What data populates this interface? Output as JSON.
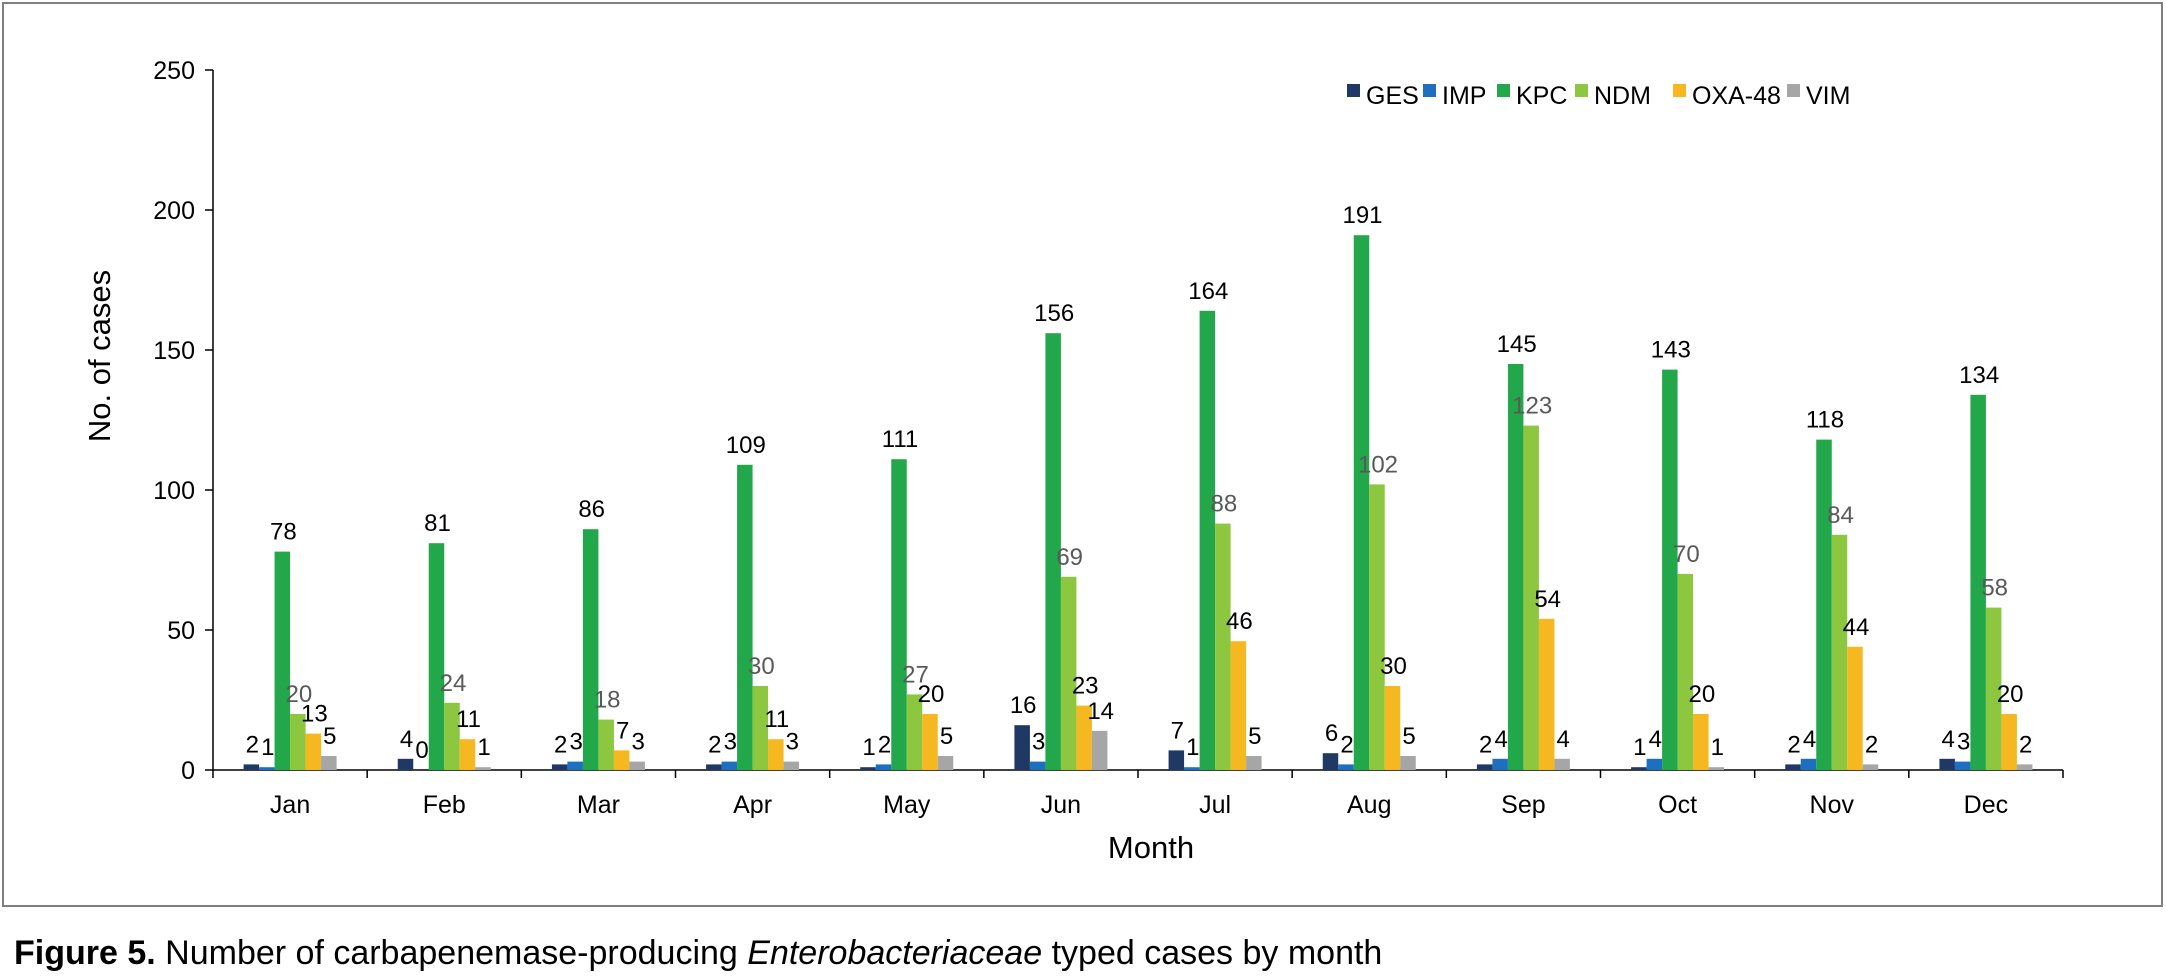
{
  "chart_data": {
    "type": "bar",
    "title": "",
    "xlabel": "Month",
    "ylabel": "No. of cases",
    "ylim": [
      0,
      250
    ],
    "yticks": [
      "0",
      "50",
      "100",
      "150",
      "200",
      "250"
    ],
    "categories": [
      "Jan",
      "Feb",
      "Mar",
      "Apr",
      "May",
      "Jun",
      "Jul",
      "Aug",
      "Sep",
      "Oct",
      "Nov",
      "Dec"
    ],
    "legend_position": "top-right",
    "grid": false,
    "series": [
      {
        "name": "GES",
        "color": "#1f3864",
        "label_color": "#000000",
        "values": [
          2,
          4,
          2,
          2,
          1,
          16,
          7,
          6,
          2,
          1,
          2,
          4
        ]
      },
      {
        "name": "IMP",
        "color": "#1f6fc0",
        "label_color": "#000000",
        "values": [
          1,
          0,
          3,
          3,
          2,
          3,
          1,
          2,
          4,
          4,
          4,
          3
        ]
      },
      {
        "name": "KPC",
        "color": "#22a84a",
        "label_color": "#000000",
        "values": [
          78,
          81,
          86,
          109,
          111,
          156,
          164,
          191,
          145,
          143,
          118,
          134
        ]
      },
      {
        "name": "NDM",
        "color": "#8dc63f",
        "label_color": "#595959",
        "values": [
          20,
          24,
          18,
          30,
          27,
          69,
          88,
          102,
          123,
          70,
          84,
          58
        ]
      },
      {
        "name": "OXA-48",
        "color": "#f5b820",
        "label_color": "#000000",
        "values": [
          13,
          11,
          7,
          11,
          20,
          23,
          46,
          30,
          54,
          20,
          44,
          20
        ]
      },
      {
        "name": "VIM",
        "color": "#a6a6a6",
        "label_color": "#000000",
        "values": [
          5,
          1,
          3,
          3,
          5,
          14,
          5,
          5,
          4,
          1,
          2,
          2
        ]
      }
    ]
  },
  "caption": {
    "figure_label": "Figure 5.",
    "text_before": "Number of carbapenemase-producing",
    "italic_term": "Enterobacteriaceae",
    "text_after": "typed cases by month"
  }
}
